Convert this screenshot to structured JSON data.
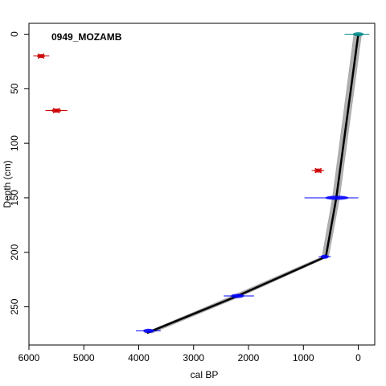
{
  "chart_data": {
    "type": "line",
    "title": "0949_MOZAMB",
    "xlabel": "cal BP",
    "ylabel": "Depth (cm)",
    "x_reversed": true,
    "y_reversed": true,
    "xlim": [
      6000,
      -300
    ],
    "ylim": [
      -10,
      285
    ],
    "x_ticks": [
      6000,
      5000,
      4000,
      3000,
      2000,
      1000,
      0
    ],
    "y_ticks": [
      0,
      50,
      100,
      150,
      200,
      250
    ],
    "grid": false,
    "legend": "none",
    "colors": {
      "age_model": "#000000",
      "uncertainty_band": "#b0b0b0",
      "used_dates": "#0000ff",
      "outliers": "#cc0000",
      "surface": "#008b8b"
    },
    "series": [
      {
        "role": "age_model",
        "x": [
          0,
          400,
          590,
          2200,
          3850
        ],
        "y": [
          0,
          150,
          204,
          240,
          274
        ]
      }
    ],
    "uncertainty_band": {
      "upper": {
        "x": [
          80,
          470,
          660,
          2300,
          3900
        ],
        "y": [
          0,
          150,
          204,
          240,
          274
        ]
      },
      "lower": {
        "x": [
          -60,
          340,
          540,
          2120,
          3750
        ],
        "y": [
          0,
          150,
          204,
          240,
          274
        ]
      }
    },
    "dated_points": [
      {
        "role": "surface",
        "x": 0,
        "y": 0,
        "x_range": [
          -200,
          250
        ]
      },
      {
        "role": "used_dates",
        "x": 390,
        "y": 150,
        "x_range": [
          0,
          980
        ]
      },
      {
        "role": "used_dates",
        "x": 610,
        "y": 204,
        "x_range": [
          500,
          720
        ]
      },
      {
        "role": "used_dates",
        "x": 2200,
        "y": 240,
        "x_range": [
          1900,
          2450
        ]
      },
      {
        "role": "used_dates",
        "x": 3820,
        "y": 272,
        "x_range": [
          3600,
          4050
        ]
      },
      {
        "role": "outliers",
        "x": 5780,
        "y": 20,
        "x_range": [
          5630,
          5920
        ]
      },
      {
        "role": "outliers",
        "x": 5500,
        "y": 70,
        "x_range": [
          5300,
          5700
        ]
      },
      {
        "role": "outliers",
        "x": 730,
        "y": 125,
        "x_range": [
          620,
          850
        ]
      }
    ]
  }
}
